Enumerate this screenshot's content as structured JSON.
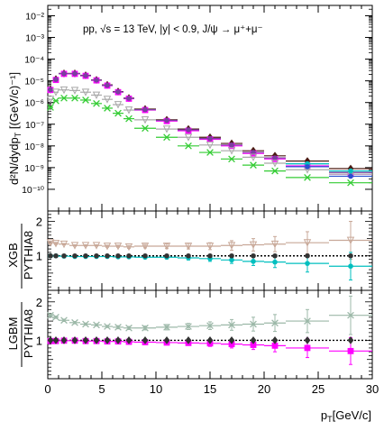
{
  "chart_data": [
    {
      "type": "scatter",
      "panel": "spectrum",
      "title": "pp, √s = 13 TeV, |y| < 0.9, J/ψ → μ⁺+μ⁻",
      "ylabel": "d²N/dydp",
      "ylabel_sub": "T",
      "ylabel_unit": " [(GeV/c)⁻¹]",
      "xlabel": "",
      "xlim": [
        0,
        30
      ],
      "ylim": [
        1e-11,
        0.03
      ],
      "yscale": "log",
      "yticks": [
        1e-10,
        1e-09,
        1e-08,
        1e-07,
        1e-06,
        1e-05,
        0.0001,
        0.001,
        0.01
      ],
      "ytick_labels": [
        "10⁻¹⁰",
        "10⁻⁹",
        "10⁻⁸",
        "10⁻⁷",
        "10⁻⁶",
        "10⁻⁵",
        "10⁻⁴",
        "10⁻³",
        "10⁻²"
      ],
      "series": [
        {
          "color": "#4a1a12",
          "marker": "diamond",
          "x": [
            0.25,
            0.75,
            1.5,
            2.5,
            3.5,
            4.5,
            5.5,
            6.5,
            7.5,
            9,
            11,
            13,
            15,
            17,
            19,
            21,
            24,
            28
          ],
          "xerr": [
            0.25,
            0.25,
            0.5,
            0.5,
            0.5,
            0.5,
            0.5,
            0.5,
            0.5,
            1,
            1,
            1,
            1,
            1,
            1,
            1,
            2,
            2
          ],
          "y": [
            4e-06,
            1.2e-05,
            2.2e-05,
            2.2e-05,
            1.8e-05,
            1.1e-05,
            6.5e-06,
            3.2e-06,
            1.6e-06,
            5e-07,
            1.6e-07,
            6e-08,
            2.5e-08,
            1.3e-08,
            6e-09,
            3.5e-09,
            2e-09,
            9e-10
          ]
        },
        {
          "color": "#ff00ff",
          "marker": "square",
          "x": [
            0.25,
            0.75,
            1.5,
            2.5,
            3.5,
            4.5,
            5.5,
            6.5,
            7.5,
            9,
            11,
            13,
            15,
            17,
            19,
            21,
            24,
            28
          ],
          "xerr": [
            0.25,
            0.25,
            0.5,
            0.5,
            0.5,
            0.5,
            0.5,
            0.5,
            0.5,
            1,
            1,
            1,
            1,
            1,
            1,
            1,
            2,
            2
          ],
          "y": [
            3.8e-06,
            1.1e-05,
            2.1e-05,
            2.1e-05,
            1.7e-05,
            1.05e-05,
            6e-06,
            3e-06,
            1.5e-06,
            4.5e-07,
            1.4e-07,
            5e-08,
            2e-08,
            1e-08,
            4.5e-09,
            2.5e-09,
            1.2e-09,
            5e-10
          ]
        },
        {
          "color": "#7b3fa0",
          "marker": "circle",
          "x": [
            0.25,
            0.75,
            1.5,
            2.5,
            3.5,
            4.5,
            5.5,
            6.5,
            7.5,
            9,
            11,
            13,
            15,
            17,
            19,
            21,
            24,
            28
          ],
          "xerr": [
            0.25,
            0.25,
            0.5,
            0.5,
            0.5,
            0.5,
            0.5,
            0.5,
            0.5,
            1,
            1,
            1,
            1,
            1,
            1,
            1,
            2,
            2
          ],
          "y": [
            3.9e-06,
            1.15e-05,
            2.15e-05,
            2.15e-05,
            1.75e-05,
            1.08e-05,
            6.2e-06,
            3.1e-06,
            1.55e-06,
            4.7e-07,
            1.5e-07,
            5.5e-08,
            2.2e-08,
            1.1e-08,
            5e-09,
            2.8e-09,
            1.5e-09,
            6e-10
          ]
        },
        {
          "color": "#a8a8a8",
          "marker": "triangle-down-open",
          "x": [
            0.25,
            0.75,
            1.5,
            2.5,
            3.5,
            4.5,
            5.5,
            6.5,
            7.5,
            9,
            11,
            13,
            15,
            17,
            19,
            21,
            24,
            28
          ],
          "xerr": [
            0.25,
            0.25,
            0.5,
            0.5,
            0.5,
            0.5,
            0.5,
            0.5,
            0.5,
            1,
            1,
            1,
            1,
            1,
            1,
            1,
            2,
            2
          ],
          "y": [
            1.4e-06,
            3e-06,
            3.8e-06,
            3.6e-06,
            3e-06,
            2.2e-06,
            1.4e-06,
            8e-07,
            4.5e-07,
            1.6e-07,
            6e-08,
            2.5e-08,
            1.1e-08,
            6e-09,
            3e-09,
            1.6e-09,
            8e-10,
            5e-10
          ]
        },
        {
          "color": "#33cc33",
          "marker": "cross",
          "x": [
            0.25,
            0.75,
            1.5,
            2.5,
            3.5,
            4.5,
            5.5,
            6.5,
            7.5,
            9,
            11,
            13,
            15,
            17,
            19,
            21,
            24,
            28
          ],
          "xerr": [
            0.25,
            0.25,
            0.5,
            0.5,
            0.5,
            0.5,
            0.5,
            0.5,
            0.5,
            1,
            1,
            1,
            1,
            1,
            1,
            1,
            2,
            2
          ],
          "y": [
            6e-07,
            1.2e-06,
            1.6e-06,
            1.6e-06,
            1.3e-06,
            9e-07,
            5.5e-07,
            3.2e-07,
            1.8e-07,
            6.5e-08,
            2.5e-08,
            1e-08,
            5e-09,
            2.5e-09,
            1.3e-09,
            7e-10,
            3.5e-10,
            2e-10
          ]
        },
        {
          "color": "#00bfbf",
          "marker": "circle",
          "x": [
            24,
            28
          ],
          "xerr": [
            2,
            2
          ],
          "y": [
            1.5e-09,
            7e-10
          ]
        },
        {
          "color": "#2b4fd0",
          "marker": "circle",
          "x": [
            24,
            28
          ],
          "xerr": [
            2,
            2
          ],
          "y": [
            1.1e-09,
            4e-10
          ]
        }
      ]
    },
    {
      "type": "scatter",
      "panel": "ratio-xgb",
      "ylabel_top": "XGB",
      "ylabel_bottom": "PYTHIA8",
      "xlim": [
        0,
        30
      ],
      "ylim": [
        0,
        2.3
      ],
      "yticks": [
        0,
        1,
        2
      ],
      "ytick_labels": [
        "",
        "1",
        "2"
      ],
      "reference_line": 1,
      "series": [
        {
          "color": "#c8a898",
          "marker": "triangle-down-open",
          "x": [
            0.25,
            0.75,
            1.5,
            2.5,
            3.5,
            4.5,
            5.5,
            6.5,
            7.5,
            9,
            11,
            13,
            15,
            17,
            19,
            21,
            24,
            28
          ],
          "xerr": [
            0.25,
            0.25,
            0.5,
            0.5,
            0.5,
            0.5,
            0.5,
            0.5,
            0.5,
            1,
            1,
            1,
            1,
            1,
            1,
            1,
            2,
            2
          ],
          "y": [
            1.38,
            1.36,
            1.34,
            1.3,
            1.3,
            1.3,
            1.28,
            1.28,
            1.26,
            1.28,
            1.28,
            1.28,
            1.28,
            1.3,
            1.32,
            1.34,
            1.38,
            1.45
          ],
          "yerr": [
            0.04,
            0.03,
            0.02,
            0.02,
            0.02,
            0.02,
            0.03,
            0.03,
            0.04,
            0.05,
            0.07,
            0.08,
            0.1,
            0.14,
            0.18,
            0.22,
            0.32,
            0.55
          ]
        },
        {
          "color": "#00bfbf",
          "marker": "circle",
          "x": [
            0.25,
            0.75,
            1.5,
            2.5,
            3.5,
            4.5,
            5.5,
            6.5,
            7.5,
            9,
            11,
            13,
            15,
            17,
            19,
            21,
            24,
            28
          ],
          "xerr": [
            0.25,
            0.25,
            0.5,
            0.5,
            0.5,
            0.5,
            0.5,
            0.5,
            0.5,
            1,
            1,
            1,
            1,
            1,
            1,
            1,
            2,
            2
          ],
          "y": [
            1.0,
            1.0,
            0.99,
            0.98,
            0.98,
            0.98,
            0.98,
            0.97,
            0.97,
            0.96,
            0.96,
            0.94,
            0.92,
            0.88,
            0.84,
            0.82,
            0.78,
            0.7
          ],
          "yerr": [
            0.03,
            0.02,
            0.02,
            0.02,
            0.02,
            0.02,
            0.02,
            0.03,
            0.03,
            0.04,
            0.05,
            0.06,
            0.08,
            0.1,
            0.12,
            0.16,
            0.25,
            0.4
          ]
        },
        {
          "color": "#333333",
          "marker": "circle",
          "x": [
            0.25,
            0.75,
            1.5,
            2.5,
            3.5,
            4.5,
            5.5,
            6.5,
            7.5,
            9,
            11,
            13,
            15,
            17,
            19,
            21,
            24,
            28
          ],
          "y": [
            1.0,
            1.0,
            1.0,
            1.0,
            1.0,
            1.0,
            1.0,
            1.0,
            1.0,
            1.0,
            1.0,
            1.0,
            1.0,
            1.0,
            1.0,
            1.0,
            1.0,
            1.0
          ]
        }
      ]
    },
    {
      "type": "scatter",
      "panel": "ratio-lgbm",
      "ylabel_top": "LGBM",
      "ylabel_bottom": "PYTHIA8",
      "xlabel": "p",
      "xlabel_sub": "T",
      "xlabel_unit": "[GeV/c]",
      "xlim": [
        0,
        30
      ],
      "ylim": [
        0,
        2.3
      ],
      "xticks": [
        0,
        5,
        10,
        15,
        20,
        25,
        30
      ],
      "xtick_labels": [
        "0",
        "5",
        "10",
        "15",
        "20",
        "25",
        "30"
      ],
      "yticks": [
        0,
        1,
        2
      ],
      "ytick_labels": [
        "",
        "1",
        "2"
      ],
      "reference_line": 1,
      "series": [
        {
          "color": "#9cb8a8",
          "marker": "cross",
          "x": [
            0.25,
            0.75,
            1.5,
            2.5,
            3.5,
            4.5,
            5.5,
            6.5,
            7.5,
            9,
            11,
            13,
            15,
            17,
            19,
            21,
            24,
            28
          ],
          "xerr": [
            0.25,
            0.25,
            0.5,
            0.5,
            0.5,
            0.5,
            0.5,
            0.5,
            0.5,
            1,
            1,
            1,
            1,
            1,
            1,
            1,
            2,
            2
          ],
          "y": [
            1.65,
            1.6,
            1.52,
            1.46,
            1.42,
            1.4,
            1.36,
            1.34,
            1.32,
            1.32,
            1.34,
            1.36,
            1.38,
            1.4,
            1.42,
            1.45,
            1.5,
            1.65
          ],
          "yerr": [
            0.04,
            0.03,
            0.03,
            0.03,
            0.03,
            0.03,
            0.03,
            0.04,
            0.04,
            0.05,
            0.07,
            0.08,
            0.1,
            0.14,
            0.18,
            0.22,
            0.3,
            0.5
          ]
        },
        {
          "color": "#ff00ff",
          "marker": "square",
          "x": [
            0.25,
            0.75,
            1.5,
            2.5,
            3.5,
            4.5,
            5.5,
            6.5,
            7.5,
            9,
            11,
            13,
            15,
            17,
            19,
            21,
            24,
            28
          ],
          "xerr": [
            0.25,
            0.25,
            0.5,
            0.5,
            0.5,
            0.5,
            0.5,
            0.5,
            0.5,
            1,
            1,
            1,
            1,
            1,
            1,
            1,
            2,
            2
          ],
          "y": [
            0.98,
            0.98,
            0.99,
            0.99,
            0.98,
            0.98,
            0.97,
            0.97,
            0.96,
            0.95,
            0.94,
            0.93,
            0.92,
            0.9,
            0.88,
            0.86,
            0.8,
            0.72
          ],
          "yerr": [
            0.03,
            0.02,
            0.02,
            0.02,
            0.02,
            0.02,
            0.02,
            0.03,
            0.03,
            0.04,
            0.05,
            0.06,
            0.08,
            0.1,
            0.12,
            0.16,
            0.25,
            0.35
          ]
        },
        {
          "color": "#333333",
          "marker": "diamond",
          "x": [
            0.25,
            0.75,
            1.5,
            2.5,
            3.5,
            4.5,
            5.5,
            6.5,
            7.5,
            9,
            11,
            13,
            15,
            17,
            19,
            21,
            24,
            28
          ],
          "y": [
            1.0,
            1.0,
            1.0,
            1.0,
            1.0,
            1.0,
            1.0,
            1.0,
            1.0,
            1.0,
            1.0,
            1.0,
            1.0,
            1.0,
            1.0,
            1.0,
            1.0,
            1.0
          ]
        }
      ]
    }
  ]
}
